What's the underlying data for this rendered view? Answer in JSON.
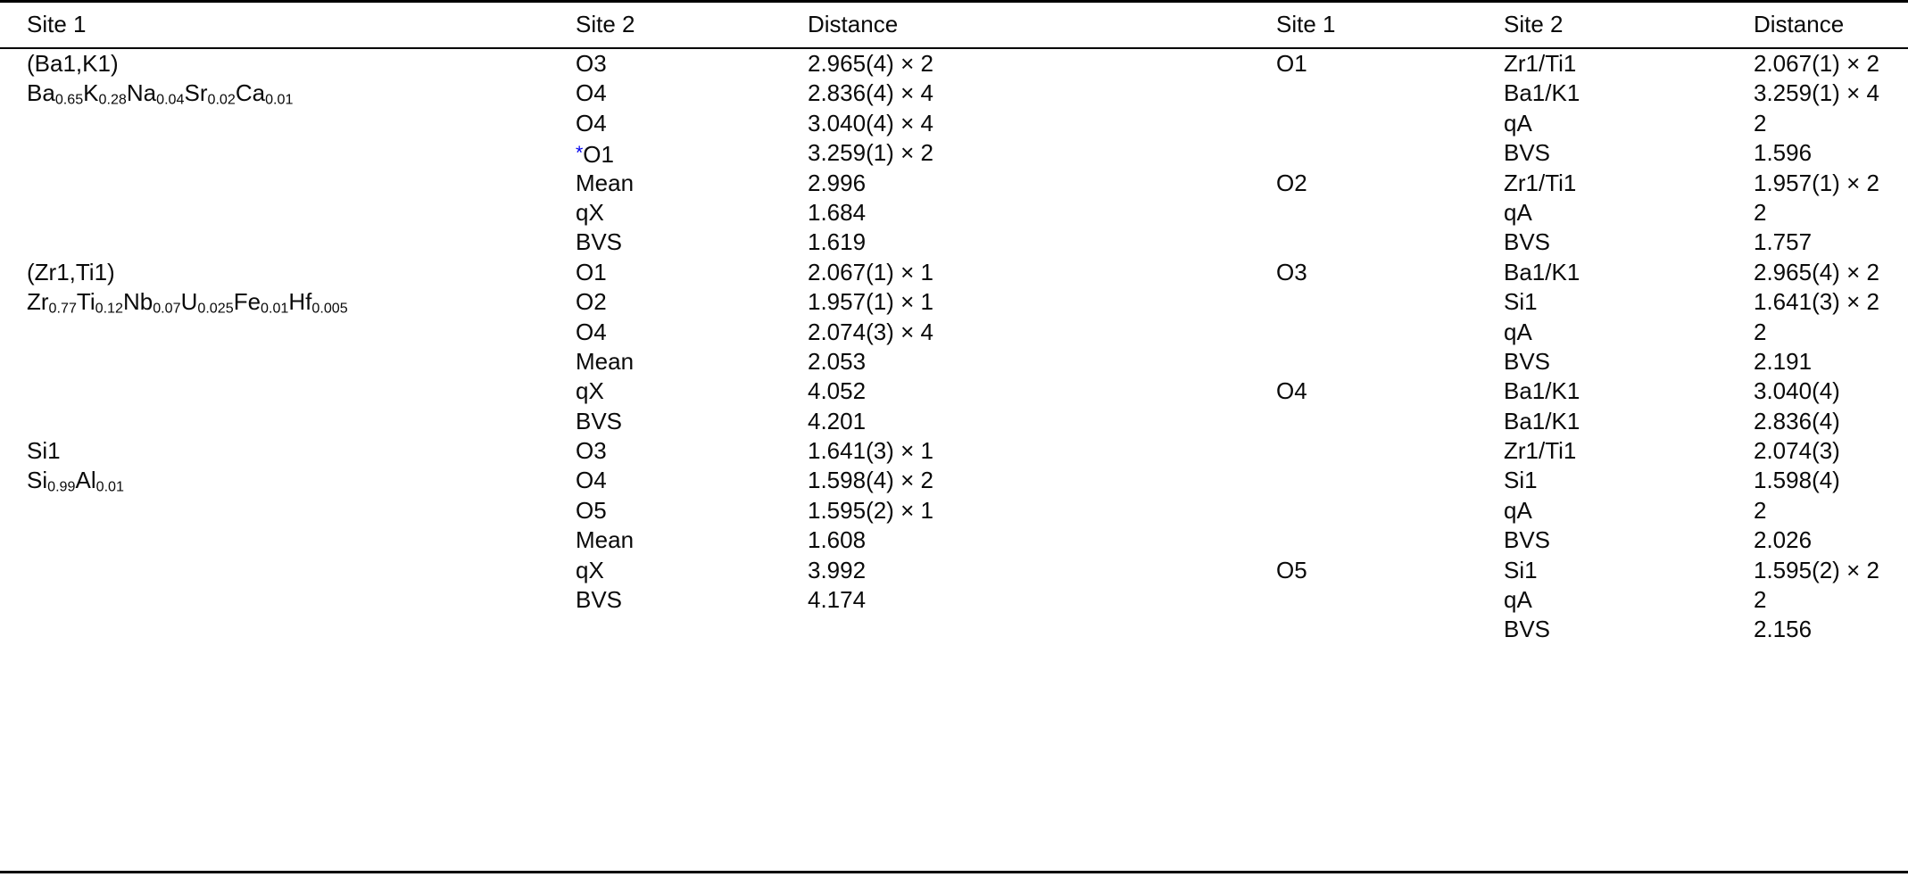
{
  "table": {
    "headers": [
      "Site 1",
      "Site 2",
      "Distance",
      "Site 1",
      "Site 2",
      "Distance"
    ],
    "footnote_star_color": "#0000ee",
    "rows": [
      {
        "l1": "(Ba1,K1)",
        "l2": "O3",
        "ld": "2.965(4) × 2",
        "r1": "O1",
        "r2": "Zr1/Ti1",
        "rd": "2.067(1) × 2"
      },
      {
        "l1": {
          "segs": [
            {
              "t": "Ba"
            },
            {
              "sub": "0.65"
            },
            {
              "t": "K"
            },
            {
              "sub": "0.28"
            },
            {
              "t": "Na"
            },
            {
              "sub": "0.04"
            },
            {
              "t": "Sr"
            },
            {
              "sub": "0.02"
            },
            {
              "t": "Ca"
            },
            {
              "sub": "0.01"
            }
          ]
        },
        "l2": "O4",
        "ld": "2.836(4) × 4",
        "r1": "",
        "r2": "Ba1/K1",
        "rd": "3.259(1) × 4"
      },
      {
        "l1": "",
        "l2": "O4",
        "ld": "3.040(4) × 4",
        "r1": "",
        "r2": "qA",
        "rd": "2"
      },
      {
        "l1": "",
        "l2": {
          "segs": [
            {
              "sup": "*",
              "color": "#0000ee",
              "name": "footnote-star",
              "interactable": true
            },
            {
              "t": "O1"
            }
          ]
        },
        "ld": "3.259(1) × 2",
        "r1": "",
        "r2": "BVS",
        "rd": "1.596"
      },
      {
        "l1": "",
        "l2": "Mean",
        "ld": "2.996",
        "r1": "O2",
        "r2": "Zr1/Ti1",
        "rd": "1.957(1) × 2"
      },
      {
        "l1": "",
        "l2": "qX",
        "ld": "1.684",
        "r1": "",
        "r2": "qA",
        "rd": "2"
      },
      {
        "l1": "",
        "l2": "BVS",
        "ld": "1.619",
        "r1": "",
        "r2": "BVS",
        "rd": "1.757"
      },
      {
        "l1": "(Zr1,Ti1)",
        "l2": "O1",
        "ld": "2.067(1) × 1",
        "r1": "O3",
        "r2": "Ba1/K1",
        "rd": "2.965(4) × 2"
      },
      {
        "l1": {
          "segs": [
            {
              "t": "Zr"
            },
            {
              "sub": "0.77"
            },
            {
              "t": "Ti"
            },
            {
              "sub": "0.12"
            },
            {
              "t": "Nb"
            },
            {
              "sub": "0.07"
            },
            {
              "t": "U"
            },
            {
              "sub": "0.025"
            },
            {
              "t": "Fe"
            },
            {
              "sub": "0.01"
            },
            {
              "t": "Hf"
            },
            {
              "sub": "0.005"
            }
          ]
        },
        "l2": "O2",
        "ld": "1.957(1) × 1",
        "r1": "",
        "r2": "Si1",
        "rd": "1.641(3) × 2"
      },
      {
        "l1": "",
        "l2": "O4",
        "ld": "2.074(3) × 4",
        "r1": "",
        "r2": "qA",
        "rd": "2"
      },
      {
        "l1": "",
        "l2": "Mean",
        "ld": "2.053",
        "r1": "",
        "r2": "BVS",
        "rd": "2.191"
      },
      {
        "l1": "",
        "l2": "qX",
        "ld": "4.052",
        "r1": "O4",
        "r2": "Ba1/K1",
        "rd": "3.040(4)"
      },
      {
        "l1": "",
        "l2": "BVS",
        "ld": "4.201",
        "r1": "",
        "r2": "Ba1/K1",
        "rd": "2.836(4)"
      },
      {
        "l1": "Si1",
        "l2": "O3",
        "ld": "1.641(3) × 1",
        "r1": "",
        "r2": "Zr1/Ti1",
        "rd": "2.074(3)"
      },
      {
        "l1": {
          "segs": [
            {
              "t": "Si"
            },
            {
              "sub": "0.99"
            },
            {
              "t": "Al"
            },
            {
              "sub": "0.01"
            }
          ]
        },
        "l2": "O4",
        "ld": "1.598(4) × 2",
        "r1": "",
        "r2": "Si1",
        "rd": "1.598(4)"
      },
      {
        "l1": "",
        "l2": "O5",
        "ld": "1.595(2) × 1",
        "r1": "",
        "r2": "qA",
        "rd": "2"
      },
      {
        "l1": "",
        "l2": "Mean",
        "ld": "1.608",
        "r1": "",
        "r2": "BVS",
        "rd": "2.026"
      },
      {
        "l1": "",
        "l2": "qX",
        "ld": "3.992",
        "r1": "O5",
        "r2": "Si1",
        "rd": "1.595(2) × 2"
      },
      {
        "l1": "",
        "l2": "BVS",
        "ld": "4.174",
        "r1": "",
        "r2": "qA",
        "rd": "2"
      },
      {
        "l1": "",
        "l2": "",
        "ld": "",
        "r1": "",
        "r2": "BVS",
        "rd": "2.156"
      }
    ]
  }
}
